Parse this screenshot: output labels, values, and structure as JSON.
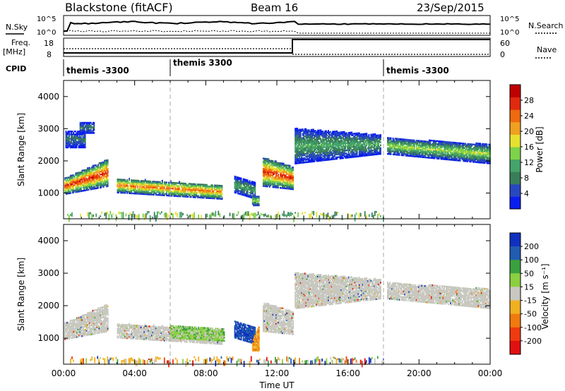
{
  "header": {
    "station": "Blackstone (fitACF)",
    "beam": "Beam 16",
    "date": "23/Sep/2015"
  },
  "meta_panels": {
    "nsky_label": "N.Sky",
    "nsearch_label": "N.Search",
    "freq_label": "Freq.",
    "freq_unit": "[MHz]",
    "nave_label": "Nave",
    "cpid_label": "CPID",
    "noise_ticks": [
      "10^5",
      "10^0"
    ],
    "noise_ticks_right": [
      "10^5",
      "10^0"
    ],
    "freq_ticks": [
      "18",
      "8"
    ],
    "nave_ticks": [
      "60",
      "0"
    ],
    "cpid_segments": [
      {
        "start_hour": 0,
        "label": "themis -3300"
      },
      {
        "start_hour": 6,
        "label": "themis 3300"
      },
      {
        "start_hour": 18,
        "label": "themis -3300"
      }
    ]
  },
  "colors": {
    "power": [
      "#0a1df0",
      "#2848c0",
      "#3a7d5a",
      "#45a46a",
      "#7fd24a",
      "#e8e030",
      "#f0a020",
      "#f06a10",
      "#e02a10",
      "#c00000"
    ],
    "velocity": [
      "#e01010",
      "#f03a10",
      "#f07a10",
      "#f0b020",
      "#c8c8c0",
      "#8ad040",
      "#3aa040",
      "#205cb0",
      "#1030c0"
    ],
    "ground_scatter": "#c8c8c0"
  },
  "chart_data": [
    {
      "type": "heatmap",
      "name": "power",
      "ylabel": "Slant Range [km]",
      "xlabel": "",
      "x_range_hours": [
        0,
        24
      ],
      "ylim": [
        200,
        4500
      ],
      "yticks": [
        1000,
        2000,
        3000,
        4000
      ],
      "colorbar": {
        "label": "Power [dB]",
        "range": [
          0,
          32
        ],
        "ticks": [
          4,
          8,
          12,
          16,
          20,
          24,
          28
        ]
      },
      "scatter_regions": [
        {
          "t_start": 0.05,
          "t_end": 2.5,
          "r_low": [
            950,
            1200
          ],
          "r_high": [
            1450,
            2050
          ],
          "peak_db": 28
        },
        {
          "t_start": 0.1,
          "t_end": 1.2,
          "r_low": [
            2400,
            2400
          ],
          "r_high": [
            2900,
            2900
          ],
          "peak_db": 8
        },
        {
          "t_start": 0.9,
          "t_end": 1.7,
          "r_low": [
            2850,
            2850
          ],
          "r_high": [
            3200,
            3200
          ],
          "peak_db": 8
        },
        {
          "t_start": 3.0,
          "t_end": 8.9,
          "r_low": [
            1000,
            800
          ],
          "r_high": [
            1450,
            1250
          ],
          "peak_db": 24
        },
        {
          "t_start": 9.6,
          "t_end": 10.8,
          "r_low": [
            1000,
            800
          ],
          "r_high": [
            1500,
            1300
          ],
          "peak_db": 12
        },
        {
          "t_start": 10.6,
          "t_end": 11.0,
          "r_low": [
            600,
            600
          ],
          "r_high": [
            900,
            900
          ],
          "peak_db": 16
        },
        {
          "t_start": 11.2,
          "t_end": 12.9,
          "r_low": [
            1200,
            1100
          ],
          "r_high": [
            2100,
            1800
          ],
          "peak_db": 28
        },
        {
          "t_start": 13.0,
          "t_end": 17.8,
          "r_low": [
            1900,
            2200
          ],
          "r_high": [
            3000,
            2800
          ],
          "peak_db": 12
        },
        {
          "t_start": 18.2,
          "t_end": 24.0,
          "r_low": [
            2200,
            1900
          ],
          "r_high": [
            2700,
            2500
          ],
          "peak_db": 16
        }
      ]
    },
    {
      "type": "heatmap",
      "name": "velocity",
      "ylabel": "Slant Range [km]",
      "xlabel": "Time UT",
      "x_range_hours": [
        0,
        24
      ],
      "xticks": [
        "00:00",
        "04:00",
        "08:00",
        "12:00",
        "16:00",
        "20:00",
        "00:00"
      ],
      "ylim": [
        200,
        4500
      ],
      "yticks": [
        1000,
        2000,
        3000,
        4000
      ],
      "colorbar": {
        "label": "Velocity [m s⁻¹]",
        "ticks": [
          200,
          100,
          50,
          15,
          -15,
          -50,
          -100,
          -200
        ]
      },
      "scatter_regions": [
        {
          "t_start": 0.05,
          "t_end": 2.5,
          "r_low": [
            950,
            1200
          ],
          "r_high": [
            1450,
            2050
          ],
          "velocity": "ground"
        },
        {
          "t_start": 3.0,
          "t_end": 8.9,
          "r_low": [
            1000,
            800
          ],
          "r_high": [
            1450,
            1250
          ],
          "velocity": "ground"
        },
        {
          "t_start": 6.0,
          "t_end": 9.0,
          "r_low": [
            1000,
            900
          ],
          "r_high": [
            1400,
            1300
          ],
          "velocity": "positive_low"
        },
        {
          "t_start": 9.6,
          "t_end": 10.8,
          "r_low": [
            1000,
            800
          ],
          "r_high": [
            1500,
            1300
          ],
          "velocity": "positive_high"
        },
        {
          "t_start": 10.6,
          "t_end": 11.0,
          "r_low": [
            600,
            600
          ],
          "r_high": [
            900,
            1400
          ],
          "velocity": "negative_high"
        },
        {
          "t_start": 11.2,
          "t_end": 12.9,
          "r_low": [
            1200,
            1100
          ],
          "r_high": [
            2100,
            1800
          ],
          "velocity": "ground"
        },
        {
          "t_start": 13.0,
          "t_end": 17.8,
          "r_low": [
            1900,
            2200
          ],
          "r_high": [
            3000,
            2800
          ],
          "velocity": "ground"
        },
        {
          "t_start": 18.2,
          "t_end": 24.0,
          "r_low": [
            2200,
            1900
          ],
          "r_high": [
            2700,
            2500
          ],
          "velocity": "ground"
        }
      ]
    }
  ]
}
